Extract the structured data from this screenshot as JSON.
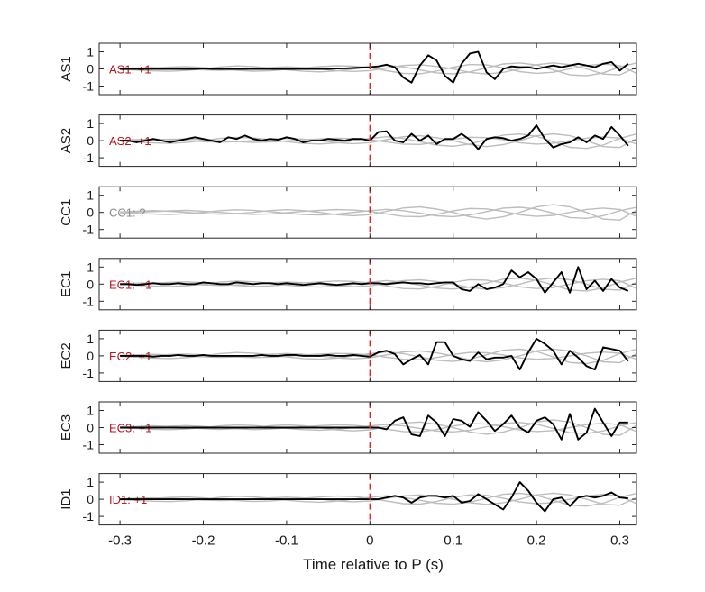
{
  "chart_data": {
    "type": "line",
    "xlabel": "Time relative to P (s)",
    "xlim": [
      -0.325,
      0.32
    ],
    "x_ticks": [
      -0.3,
      -0.2,
      -0.1,
      0,
      0.1,
      0.2,
      0.3
    ],
    "x_tick_labels": [
      "-0.3",
      "-0.2",
      "-0.1",
      "0",
      "0.1",
      "0.2",
      "0.3"
    ],
    "ylim": [
      -1.5,
      1.5
    ],
    "y_ticks": [
      1,
      0,
      -1
    ],
    "y_tick_labels": [
      "1",
      "0",
      "-1"
    ],
    "marker_line": {
      "x": 0,
      "style": "dashed",
      "color": "#e8241c"
    },
    "colors": {
      "main_trace": "#000000",
      "background_traces": "#bdbdbd",
      "label_positive": "#c0141c",
      "label_unknown": "#8c8c8c"
    },
    "grid": false,
    "panels": [
      {
        "ylabel": "AS1",
        "annotation": "AS1: +1",
        "annotation_color": "#c0141c",
        "main_trace": true,
        "x": [
          -0.3,
          -0.29,
          -0.28,
          -0.27,
          -0.26,
          -0.25,
          -0.24,
          -0.23,
          -0.22,
          -0.21,
          -0.2,
          -0.19,
          -0.18,
          -0.17,
          -0.16,
          -0.15,
          -0.14,
          -0.13,
          -0.12,
          -0.11,
          -0.1,
          -0.09,
          -0.08,
          -0.07,
          -0.06,
          -0.05,
          -0.04,
          -0.03,
          -0.02,
          -0.01,
          0,
          0.01,
          0.02,
          0.03,
          0.04,
          0.05,
          0.06,
          0.07,
          0.08,
          0.09,
          0.1,
          0.11,
          0.12,
          0.13,
          0.14,
          0.15,
          0.16,
          0.17,
          0.18,
          0.19,
          0.2,
          0.21,
          0.22,
          0.23,
          0.24,
          0.25,
          0.26,
          0.27,
          0.28,
          0.29,
          0.3,
          0.31
        ],
        "y": [
          0,
          0,
          0,
          0,
          0,
          0,
          0,
          0,
          0,
          0,
          0.02,
          0,
          0,
          0,
          0,
          0,
          0,
          0,
          0,
          0,
          0,
          0,
          0,
          0,
          0,
          0,
          0.02,
          0.03,
          0.05,
          0.08,
          0.1,
          0.15,
          0.25,
          0.1,
          -0.5,
          -0.8,
          0.2,
          0.8,
          0.5,
          -0.4,
          -0.8,
          0.3,
          0.9,
          1.0,
          -0.2,
          -0.6,
          0,
          0.15,
          0.1,
          0.1,
          0,
          0.1,
          0.2,
          0.1,
          0.2,
          0.3,
          0.2,
          0.1,
          0.3,
          0.4,
          -0.1,
          0.3
        ]
      },
      {
        "ylabel": "AS2",
        "annotation": "AS2: +1",
        "annotation_color": "#c0141c",
        "main_trace": true,
        "x": [
          -0.3,
          -0.29,
          -0.28,
          -0.27,
          -0.26,
          -0.25,
          -0.24,
          -0.23,
          -0.22,
          -0.21,
          -0.2,
          -0.19,
          -0.18,
          -0.17,
          -0.16,
          -0.15,
          -0.14,
          -0.13,
          -0.12,
          -0.11,
          -0.1,
          -0.09,
          -0.08,
          -0.07,
          -0.06,
          -0.05,
          -0.04,
          -0.03,
          -0.02,
          -0.01,
          0,
          0.01,
          0.02,
          0.03,
          0.04,
          0.05,
          0.06,
          0.07,
          0.08,
          0.09,
          0.1,
          0.11,
          0.12,
          0.13,
          0.14,
          0.15,
          0.16,
          0.17,
          0.18,
          0.19,
          0.2,
          0.21,
          0.22,
          0.23,
          0.24,
          0.25,
          0.26,
          0.27,
          0.28,
          0.29,
          0.3,
          0.31
        ],
        "y": [
          0,
          0,
          -0.1,
          0,
          0.1,
          0,
          -0.1,
          0,
          0.1,
          0.2,
          0.1,
          0,
          -0.1,
          0.2,
          0.1,
          0.3,
          0.1,
          0,
          0.1,
          0.05,
          0.2,
          0.1,
          -0.1,
          0,
          0,
          0.1,
          0.05,
          0,
          0.1,
          0.1,
          0,
          0.5,
          0.55,
          0,
          -0.1,
          0.4,
          0,
          0.3,
          -0.2,
          0.1,
          0.1,
          0.4,
          0.05,
          -0.5,
          0.1,
          0.2,
          0.15,
          0,
          0.1,
          0.3,
          0.9,
          0.1,
          -0.4,
          -0.2,
          -0.1,
          0.2,
          -0.1,
          0.3,
          0.1,
          0.8,
          0.3,
          -0.3
        ]
      },
      {
        "ylabel": "CC1",
        "annotation": "CC1: ?",
        "annotation_color": "#8c8c8c",
        "main_trace": false,
        "x": [],
        "y": []
      },
      {
        "ylabel": "EC1",
        "annotation": "EC1: +1",
        "annotation_color": "#c0141c",
        "main_trace": true,
        "x": [
          -0.3,
          -0.29,
          -0.28,
          -0.27,
          -0.26,
          -0.25,
          -0.24,
          -0.23,
          -0.22,
          -0.21,
          -0.2,
          -0.19,
          -0.18,
          -0.17,
          -0.16,
          -0.15,
          -0.14,
          -0.13,
          -0.12,
          -0.11,
          -0.1,
          -0.09,
          -0.08,
          -0.07,
          -0.06,
          -0.05,
          -0.04,
          -0.03,
          -0.02,
          -0.01,
          0,
          0.01,
          0.02,
          0.03,
          0.04,
          0.05,
          0.06,
          0.07,
          0.08,
          0.09,
          0.1,
          0.11,
          0.12,
          0.13,
          0.14,
          0.15,
          0.16,
          0.17,
          0.18,
          0.19,
          0.2,
          0.21,
          0.22,
          0.23,
          0.24,
          0.25,
          0.26,
          0.27,
          0.28,
          0.29,
          0.3,
          0.31
        ],
        "y": [
          0,
          0,
          -0.05,
          0,
          0.05,
          0,
          0,
          0.05,
          0,
          0,
          0.1,
          0.05,
          0,
          0,
          0.1,
          0.05,
          0,
          0.05,
          0.05,
          0,
          0.05,
          0,
          -0.05,
          0,
          0.05,
          0,
          -0.05,
          0,
          0.05,
          0,
          0.05,
          0.05,
          0,
          0.05,
          0.1,
          0.05,
          0.05,
          0,
          0.05,
          0.1,
          0.1,
          -0.3,
          -0.4,
          0,
          -0.3,
          -0.2,
          0,
          0.8,
          0.4,
          0.7,
          0.3,
          -0.5,
          0.1,
          0.7,
          -0.5,
          1.0,
          -0.3,
          0.2,
          -0.4,
          0.3,
          -0.2,
          -0.4
        ]
      },
      {
        "ylabel": "EC2",
        "annotation": "EC2: +1",
        "annotation_color": "#c0141c",
        "main_trace": true,
        "x": [
          -0.3,
          -0.29,
          -0.28,
          -0.27,
          -0.26,
          -0.25,
          -0.24,
          -0.23,
          -0.22,
          -0.21,
          -0.2,
          -0.19,
          -0.18,
          -0.17,
          -0.16,
          -0.15,
          -0.14,
          -0.13,
          -0.12,
          -0.11,
          -0.1,
          -0.09,
          -0.08,
          -0.07,
          -0.06,
          -0.05,
          -0.04,
          -0.03,
          -0.02,
          -0.01,
          0,
          0.01,
          0.02,
          0.03,
          0.04,
          0.05,
          0.06,
          0.07,
          0.08,
          0.09,
          0.1,
          0.11,
          0.12,
          0.13,
          0.14,
          0.15,
          0.16,
          0.17,
          0.18,
          0.19,
          0.2,
          0.21,
          0.22,
          0.23,
          0.24,
          0.25,
          0.26,
          0.27,
          0.28,
          0.29,
          0.3,
          0.31
        ],
        "y": [
          0,
          0,
          0,
          0,
          -0.05,
          0,
          0,
          0.05,
          0,
          0,
          0.05,
          0,
          0,
          0,
          0,
          0,
          0,
          0.05,
          0,
          0,
          0.05,
          0.05,
          0,
          0,
          0,
          0.05,
          0,
          0,
          0.05,
          0,
          -0.05,
          0.2,
          0.3,
          0.1,
          -0.5,
          -0.2,
          0.05,
          -0.5,
          0.8,
          0.8,
          0,
          -0.2,
          -0.3,
          0.2,
          -0.2,
          -0.1,
          -0.1,
          0,
          -0.8,
          0.2,
          1.0,
          0.7,
          0.3,
          -0.5,
          0.3,
          -0.1,
          -0.6,
          -0.8,
          0.5,
          0.4,
          0.3,
          -0.3
        ]
      },
      {
        "ylabel": "EC3",
        "annotation": "EC3: +1",
        "annotation_color": "#c0141c",
        "main_trace": true,
        "x": [
          -0.3,
          -0.29,
          -0.28,
          -0.27,
          -0.26,
          -0.25,
          -0.24,
          -0.23,
          -0.22,
          -0.21,
          -0.2,
          -0.19,
          -0.18,
          -0.17,
          -0.16,
          -0.15,
          -0.14,
          -0.13,
          -0.12,
          -0.11,
          -0.1,
          -0.09,
          -0.08,
          -0.07,
          -0.06,
          -0.05,
          -0.04,
          -0.03,
          -0.02,
          -0.01,
          0,
          0.01,
          0.02,
          0.03,
          0.04,
          0.05,
          0.06,
          0.07,
          0.08,
          0.09,
          0.1,
          0.11,
          0.12,
          0.13,
          0.14,
          0.15,
          0.16,
          0.17,
          0.18,
          0.19,
          0.2,
          0.21,
          0.22,
          0.23,
          0.24,
          0.25,
          0.26,
          0.27,
          0.28,
          0.29,
          0.3,
          0.31
        ],
        "y": [
          0,
          0,
          0,
          0,
          0,
          0,
          0,
          0,
          0,
          0,
          0,
          0,
          0,
          0,
          0,
          0,
          0,
          0,
          0,
          0,
          0,
          0,
          0,
          0,
          0,
          0,
          0,
          0,
          0,
          0,
          0,
          0,
          -0.1,
          0.4,
          0.6,
          -0.4,
          -0.5,
          0.7,
          0.3,
          -0.5,
          0.5,
          0.4,
          0.05,
          0.9,
          0.4,
          -0.2,
          0.2,
          0.7,
          0,
          -0.3,
          0.4,
          0.6,
          0.2,
          -0.7,
          0.8,
          -0.7,
          -0.3,
          1.1,
          0.3,
          -0.5,
          0.3,
          0.3
        ]
      },
      {
        "ylabel": "ID1",
        "annotation": "ID1: +1",
        "annotation_color": "#c0141c",
        "main_trace": true,
        "x": [
          -0.3,
          -0.29,
          -0.28,
          -0.27,
          -0.26,
          -0.25,
          -0.24,
          -0.23,
          -0.22,
          -0.21,
          -0.2,
          -0.19,
          -0.18,
          -0.17,
          -0.16,
          -0.15,
          -0.14,
          -0.13,
          -0.12,
          -0.11,
          -0.1,
          -0.09,
          -0.08,
          -0.07,
          -0.06,
          -0.05,
          -0.04,
          -0.03,
          -0.02,
          -0.01,
          0,
          0.01,
          0.02,
          0.03,
          0.04,
          0.05,
          0.06,
          0.07,
          0.08,
          0.09,
          0.1,
          0.11,
          0.12,
          0.13,
          0.14,
          0.15,
          0.16,
          0.17,
          0.18,
          0.19,
          0.2,
          0.21,
          0.22,
          0.23,
          0.24,
          0.25,
          0.26,
          0.27,
          0.28,
          0.29,
          0.3,
          0.31
        ],
        "y": [
          0,
          0,
          0,
          0,
          0,
          0,
          0,
          0,
          0,
          0,
          0,
          0,
          0,
          0,
          0,
          0,
          0,
          0,
          0,
          0,
          0,
          0,
          0,
          0,
          0,
          0,
          0,
          0,
          0,
          0,
          0,
          0,
          0.1,
          0.2,
          0.1,
          -0.2,
          0.1,
          0.2,
          0.2,
          0.1,
          0.2,
          -0.2,
          -0.1,
          0.3,
          0,
          -0.3,
          -0.6,
          0.1,
          1.0,
          0.5,
          -0.2,
          -0.7,
          0,
          0.1,
          -0.4,
          0.1,
          0.2,
          0.1,
          0.2,
          0.4,
          0.1,
          0.05
        ]
      }
    ],
    "background_traces": [
      {
        "x": [
          -0.3,
          -0.28,
          -0.26,
          -0.24,
          -0.22,
          -0.2,
          -0.18,
          -0.16,
          -0.14,
          -0.12,
          -0.1,
          -0.08,
          -0.06,
          -0.04,
          -0.02,
          0,
          0.02,
          0.04,
          0.06,
          0.08,
          0.1,
          0.12,
          0.14,
          0.16,
          0.18,
          0.2,
          0.22,
          0.24,
          0.26,
          0.28,
          0.3,
          0.32
        ],
        "y": [
          0.02,
          0.05,
          0.08,
          0.05,
          0,
          -0.05,
          -0.08,
          -0.05,
          0,
          0.08,
          0.12,
          0.08,
          0,
          -0.1,
          -0.15,
          -0.1,
          0.05,
          0.2,
          0.25,
          0.15,
          0,
          -0.2,
          -0.3,
          -0.2,
          0,
          0.25,
          0.35,
          0.25,
          0,
          -0.3,
          -0.35,
          0.1
        ]
      },
      {
        "x": [
          -0.3,
          -0.28,
          -0.26,
          -0.24,
          -0.22,
          -0.2,
          -0.18,
          -0.16,
          -0.14,
          -0.12,
          -0.1,
          -0.08,
          -0.06,
          -0.04,
          -0.02,
          0,
          0.02,
          0.04,
          0.06,
          0.08,
          0.1,
          0.12,
          0.14,
          0.16,
          0.18,
          0.2,
          0.22,
          0.24,
          0.26,
          0.28,
          0.3,
          0.32
        ],
        "y": [
          -0.02,
          -0.06,
          -0.1,
          -0.12,
          -0.08,
          0,
          0.1,
          0.15,
          0.12,
          0.05,
          -0.05,
          -0.12,
          -0.15,
          -0.1,
          0,
          0.1,
          0.18,
          0.1,
          -0.05,
          -0.2,
          -0.25,
          -0.15,
          0.05,
          0.25,
          0.3,
          0.2,
          -0.05,
          -0.3,
          -0.35,
          -0.2,
          0.1,
          0.3
        ]
      },
      {
        "x": [
          -0.3,
          -0.28,
          -0.26,
          -0.24,
          -0.22,
          -0.2,
          -0.18,
          -0.16,
          -0.14,
          -0.12,
          -0.1,
          -0.08,
          -0.06,
          -0.04,
          -0.02,
          0,
          0.02,
          0.04,
          0.06,
          0.08,
          0.1,
          0.12,
          0.14,
          0.16,
          0.18,
          0.2,
          0.22,
          0.24,
          0.26,
          0.28,
          0.3,
          0.32
        ],
        "y": [
          0,
          0.02,
          0.04,
          0.08,
          0.1,
          0.06,
          0,
          -0.06,
          -0.1,
          -0.08,
          -0.02,
          0.05,
          0.1,
          0.14,
          0.12,
          0.05,
          -0.08,
          -0.2,
          -0.22,
          -0.1,
          0.08,
          0.2,
          0.18,
          0.05,
          -0.12,
          -0.2,
          -0.15,
          0,
          0.15,
          0.22,
          0.15,
          -0.2
        ]
      }
    ]
  }
}
